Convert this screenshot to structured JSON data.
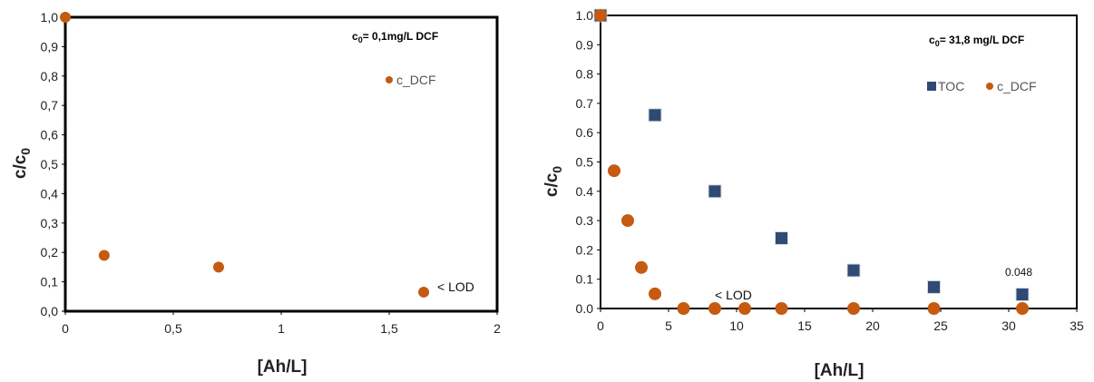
{
  "chart_data": [
    {
      "type": "scatter",
      "condition": "c0= 0,1mg/L DCF",
      "condition_main": "c",
      "condition_sub": "0",
      "condition_rest": "= 0,1mg/L DCF",
      "xlabel": "[Ah/L]",
      "ylabel_main": "c/c",
      "ylabel_sub": "0",
      "xlim": [
        0,
        2
      ],
      "ylim": [
        0,
        1.0
      ],
      "x_ticks": [
        "0",
        "0,5",
        "1",
        "1,5",
        "2"
      ],
      "y_ticks": [
        "0,0",
        "0,1",
        "0,2",
        "0,3",
        "0,4",
        "0,5",
        "0,6",
        "0,7",
        "0,8",
        "0,9",
        "1,0"
      ],
      "series": [
        {
          "name": "c_DCF",
          "marker": "circle",
          "color": "#c55a11",
          "x": [
            0,
            0.18,
            0.71,
            1.66
          ],
          "y": [
            1.0,
            0.19,
            0.15,
            0.065
          ]
        }
      ],
      "annotations": [
        {
          "text": "< LOD"
        }
      ],
      "legend_position": "top-right"
    },
    {
      "type": "scatter",
      "condition": "c0= 31,8 mg/L DCF",
      "condition_main": "c",
      "condition_sub": "0",
      "condition_rest": "= 31,8 mg/L DCF",
      "xlabel": "[Ah/L]",
      "ylabel_main": "c/c",
      "ylabel_sub": "0",
      "xlim": [
        0,
        35
      ],
      "ylim": [
        0,
        1.0
      ],
      "x_ticks": [
        "0",
        "5",
        "10",
        "15",
        "20",
        "25",
        "30",
        "35"
      ],
      "y_ticks": [
        "0.0",
        "0.1",
        "0.2",
        "0.3",
        "0.4",
        "0.5",
        "0.6",
        "0.7",
        "0.8",
        "0.9",
        "1.0"
      ],
      "series": [
        {
          "name": "TOC",
          "marker": "square",
          "color": "#2f4a73",
          "x": [
            0,
            4,
            8.4,
            13.3,
            18.6,
            24.5,
            31
          ],
          "y": [
            1.0,
            0.66,
            0.4,
            0.24,
            0.13,
            0.073,
            0.048
          ]
        },
        {
          "name": "c_DCF",
          "marker": "circle",
          "color": "#c55a11",
          "x": [
            0,
            1,
            2,
            3,
            4,
            6.1,
            8.4,
            10.6,
            13.3,
            18.6,
            24.5,
            31
          ],
          "y": [
            1.0,
            0.47,
            0.3,
            0.14,
            0.05,
            0,
            0,
            0,
            0,
            0,
            0,
            0
          ]
        }
      ],
      "annotations": [
        {
          "text": "< LOD"
        },
        {
          "text": "0.048"
        }
      ],
      "legend_position": "top-right"
    }
  ]
}
